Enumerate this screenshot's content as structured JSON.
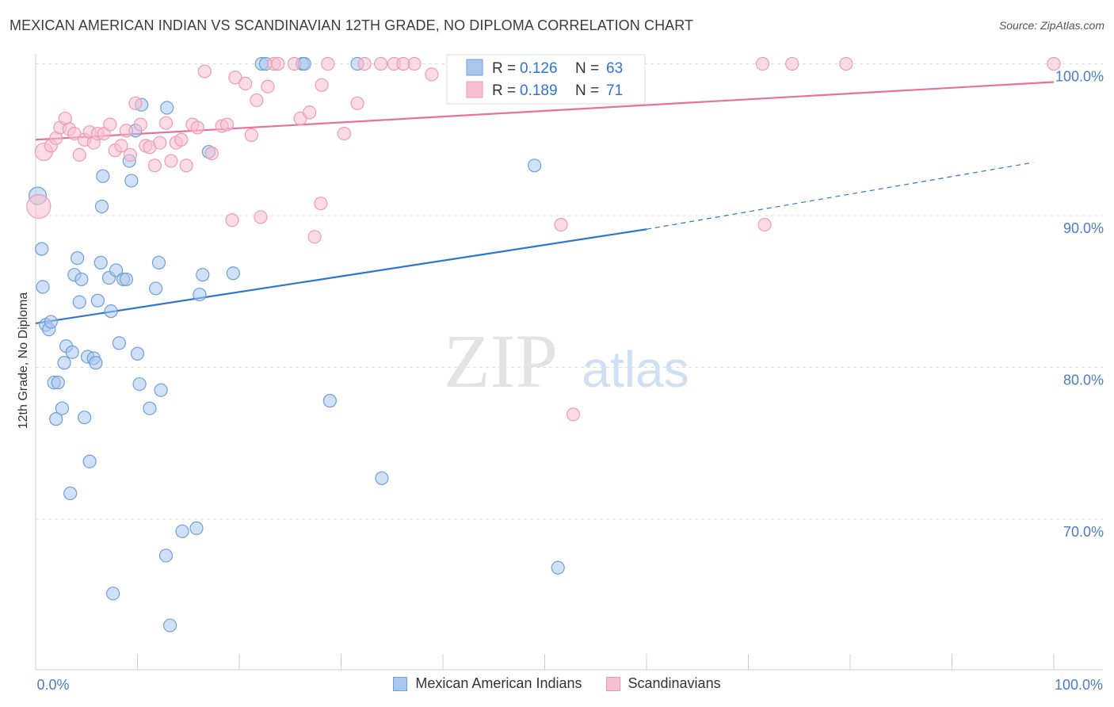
{
  "title": "MEXICAN AMERICAN INDIAN VS SCANDINAVIAN 12TH GRADE, NO DIPLOMA CORRELATION CHART",
  "source": "Source: ZipAtlas.com",
  "watermark": {
    "zip": "ZIP",
    "atlas": "atlas"
  },
  "colors": {
    "blue_fill": "#a9c7ee",
    "blue_stroke": "#6f9fd8",
    "blue_line": "#2f74d0",
    "pink_fill": "#f7bfd0",
    "pink_stroke": "#ef9ab5",
    "pink_line": "#e8719a",
    "tick_label": "#4a7cc7",
    "grid": "#dddddd"
  },
  "chart_data": {
    "type": "scatter",
    "title": "MEXICAN AMERICAN INDIAN VS SCANDINAVIAN 12TH GRADE, NO DIPLOMA CORRELATION CHART",
    "xlabel": "",
    "ylabel": "12th Grade, No Diploma",
    "xlim": [
      0,
      100
    ],
    "ylim": [
      60.5,
      102
    ],
    "x_tick_labels": [
      "0.0%",
      "100.0%"
    ],
    "y_ticks": [
      70,
      80,
      90,
      100
    ],
    "y_tick_labels": [
      "70.0%",
      "80.0%",
      "90.0%",
      "100.0%"
    ],
    "grid": true,
    "legend_position": "top-center",
    "stats": [
      {
        "series": "Mexican American Indians",
        "r_label": "R =",
        "r": "0.126",
        "n_label": "N =",
        "n": "63"
      },
      {
        "series": "Scandinavians",
        "r_label": "R =",
        "r": "0.189",
        "n_label": "N =",
        "n": "71"
      }
    ],
    "series": [
      {
        "name": "Mexican American Indians",
        "color": "blue",
        "trend": {
          "x0": 0,
          "y0": 82.9,
          "x1": 60,
          "y1": 89.1,
          "dash_x1": 98,
          "dash_y1": 93.5
        },
        "points": [
          [
            0.2,
            91.3,
            2
          ],
          [
            0.6,
            87.8,
            1
          ],
          [
            0.7,
            85.3,
            1
          ],
          [
            1.0,
            82.8,
            1
          ],
          [
            1.3,
            82.5,
            1
          ],
          [
            1.5,
            83.0,
            1
          ],
          [
            1.8,
            79.0,
            1
          ],
          [
            2.0,
            76.6,
            1
          ],
          [
            2.2,
            79.0,
            1
          ],
          [
            2.6,
            77.3,
            1
          ],
          [
            2.8,
            80.3,
            1
          ],
          [
            3.0,
            81.4,
            1
          ],
          [
            3.4,
            71.7,
            1
          ],
          [
            3.6,
            81.0,
            1
          ],
          [
            3.8,
            86.1,
            1
          ],
          [
            4.1,
            87.2,
            1
          ],
          [
            4.3,
            84.3,
            1
          ],
          [
            4.5,
            85.8,
            1
          ],
          [
            4.8,
            76.7,
            1
          ],
          [
            5.1,
            80.7,
            1
          ],
          [
            5.3,
            73.8,
            1
          ],
          [
            5.7,
            80.6,
            1
          ],
          [
            5.9,
            80.3,
            1
          ],
          [
            6.1,
            84.4,
            1
          ],
          [
            6.4,
            86.9,
            1
          ],
          [
            6.6,
            92.6,
            1
          ],
          [
            6.5,
            90.6,
            1
          ],
          [
            7.2,
            85.9,
            1
          ],
          [
            7.4,
            83.7,
            1
          ],
          [
            7.6,
            65.1,
            1
          ],
          [
            7.9,
            86.4,
            1
          ],
          [
            8.2,
            81.6,
            1
          ],
          [
            8.6,
            85.8,
            1
          ],
          [
            8.9,
            85.8,
            1
          ],
          [
            9.2,
            93.6,
            1
          ],
          [
            9.4,
            92.3,
            1
          ],
          [
            9.8,
            95.6,
            1
          ],
          [
            10.0,
            80.9,
            1
          ],
          [
            10.2,
            78.9,
            1
          ],
          [
            10.4,
            97.3,
            1
          ],
          [
            11.2,
            77.3,
            1
          ],
          [
            11.8,
            85.2,
            1
          ],
          [
            12.1,
            86.9,
            1
          ],
          [
            12.3,
            78.5,
            1
          ],
          [
            12.8,
            67.6,
            1
          ],
          [
            12.9,
            97.1,
            1
          ],
          [
            13.2,
            63.0,
            1
          ],
          [
            14.4,
            69.2,
            1
          ],
          [
            15.8,
            69.4,
            1
          ],
          [
            16.1,
            84.8,
            1
          ],
          [
            16.4,
            86.1,
            1
          ],
          [
            17.0,
            94.2,
            1
          ],
          [
            19.4,
            86.2,
            1
          ],
          [
            22.2,
            100,
            1
          ],
          [
            22.6,
            100,
            1
          ],
          [
            26.2,
            100,
            1
          ],
          [
            26.4,
            100,
            1
          ],
          [
            28.9,
            77.8,
            1
          ],
          [
            31.6,
            100,
            1
          ],
          [
            34.0,
            72.7,
            1
          ],
          [
            49.0,
            93.3,
            1
          ],
          [
            51.3,
            66.8,
            1
          ]
        ]
      },
      {
        "name": "Scandinavians",
        "color": "pink",
        "trend": {
          "x0": 0,
          "y0": 95.0,
          "x1": 100,
          "y1": 98.8
        },
        "points": [
          [
            0.3,
            90.6,
            3
          ],
          [
            0.8,
            94.2,
            2
          ],
          [
            1.5,
            94.6,
            1
          ],
          [
            2.0,
            95.1,
            1
          ],
          [
            2.4,
            95.8,
            1
          ],
          [
            2.9,
            96.4,
            1
          ],
          [
            3.3,
            95.7,
            1
          ],
          [
            3.8,
            95.4,
            1
          ],
          [
            4.3,
            94.0,
            1
          ],
          [
            4.8,
            95.0,
            1
          ],
          [
            5.3,
            95.5,
            1
          ],
          [
            5.7,
            94.8,
            1
          ],
          [
            6.1,
            95.4,
            1
          ],
          [
            6.7,
            95.4,
            1
          ],
          [
            7.3,
            96.0,
            1
          ],
          [
            7.8,
            94.3,
            1
          ],
          [
            8.4,
            94.6,
            1
          ],
          [
            8.9,
            95.6,
            1
          ],
          [
            9.3,
            94.0,
            1
          ],
          [
            9.8,
            97.4,
            1
          ],
          [
            10.3,
            96.0,
            1
          ],
          [
            10.8,
            94.6,
            1
          ],
          [
            11.2,
            94.5,
            1
          ],
          [
            11.7,
            93.3,
            1
          ],
          [
            12.2,
            94.8,
            1
          ],
          [
            12.8,
            96.1,
            1
          ],
          [
            13.3,
            93.6,
            1
          ],
          [
            13.8,
            94.8,
            1
          ],
          [
            14.3,
            95.0,
            1
          ],
          [
            14.8,
            93.3,
            1
          ],
          [
            15.4,
            96.0,
            1
          ],
          [
            15.9,
            95.8,
            1
          ],
          [
            16.6,
            99.5,
            1
          ],
          [
            17.3,
            94.1,
            1
          ],
          [
            18.3,
            95.9,
            1
          ],
          [
            18.8,
            96.0,
            1
          ],
          [
            19.3,
            89.7,
            1
          ],
          [
            19.6,
            99.1,
            1
          ],
          [
            20.6,
            98.7,
            1
          ],
          [
            21.2,
            95.3,
            1
          ],
          [
            21.7,
            97.6,
            1
          ],
          [
            22.1,
            89.9,
            1
          ],
          [
            22.8,
            98.5,
            1
          ],
          [
            23.4,
            100,
            1
          ],
          [
            23.8,
            100,
            1
          ],
          [
            25.4,
            100,
            1
          ],
          [
            26.0,
            96.4,
            1
          ],
          [
            26.9,
            96.8,
            1
          ],
          [
            27.4,
            88.6,
            1
          ],
          [
            28.0,
            90.8,
            1
          ],
          [
            28.1,
            98.6,
            1
          ],
          [
            28.7,
            100,
            1
          ],
          [
            30.3,
            95.4,
            1
          ],
          [
            31.6,
            97.4,
            1
          ],
          [
            32.3,
            100,
            1
          ],
          [
            33.9,
            100,
            1
          ],
          [
            35.2,
            100,
            1
          ],
          [
            36.1,
            100,
            1
          ],
          [
            37.2,
            100,
            1
          ],
          [
            38.9,
            99.3,
            1
          ],
          [
            41.6,
            100,
            1
          ],
          [
            44.2,
            100,
            1
          ],
          [
            47.0,
            100,
            1
          ],
          [
            49.8,
            100,
            1
          ],
          [
            51.6,
            89.4,
            1
          ],
          [
            52.8,
            76.9,
            1
          ],
          [
            71.4,
            100,
            1
          ],
          [
            74.3,
            100,
            1
          ],
          [
            71.6,
            89.4,
            1
          ],
          [
            79.6,
            100,
            1
          ],
          [
            100,
            100,
            1
          ]
        ]
      }
    ]
  }
}
